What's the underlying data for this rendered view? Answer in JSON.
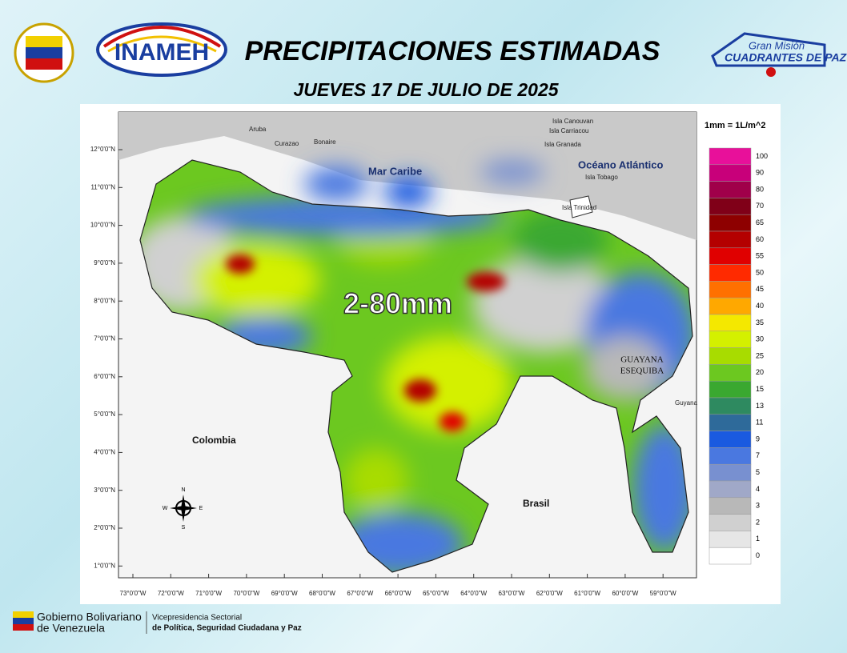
{
  "header": {
    "title": "PRECIPITACIONES ESTIMADAS",
    "subtitle": "JUEVES 17 DE JULIO DE 2025",
    "left_logo": "INAMEH",
    "right_logo_top": "Gran Misión",
    "right_logo_bottom": "CUADRANTES DE PAZ"
  },
  "map": {
    "latitude_labels": [
      "12°0'0\"N",
      "11°0'0\"N",
      "10°0'0\"N",
      "9°0'0\"N",
      "8°0'0\"N",
      "7°0'0\"N",
      "6°0'0\"N",
      "5°0'0\"N",
      "4°0'0\"N",
      "3°0'0\"N",
      "2°0'0\"N",
      "1°0'0\"N"
    ],
    "longitude_labels": [
      "73°0'0\"W",
      "72°0'0\"W",
      "71°0'0\"W",
      "70°0'0\"W",
      "69°0'0\"W",
      "68°0'0\"W",
      "67°0'0\"W",
      "66°0'0\"W",
      "65°0'0\"W",
      "64°0'0\"W",
      "63°0'0\"W",
      "62°0'0\"W",
      "61°0'0\"W",
      "60°0'0\"W",
      "59°0'0\"W"
    ],
    "places": [
      {
        "label": "Aruba"
      },
      {
        "label": "Curazao"
      },
      {
        "label": "Bonaire"
      },
      {
        "label": "Isla Canouvan"
      },
      {
        "label": "Isla Carriacou"
      },
      {
        "label": "Isla Granada"
      },
      {
        "label": "Isla Tobago"
      },
      {
        "label": "Isla Trinidad"
      },
      {
        "label": "Guyana"
      }
    ],
    "regions": [
      {
        "label": "Mar Caribe"
      },
      {
        "label": "Océano Atlántico"
      },
      {
        "label": "Colombia"
      },
      {
        "label": "Brasil"
      }
    ],
    "esequibo": [
      "GUAYANA",
      "ESEQUIBA"
    ],
    "range_label": "2-80mm",
    "compass": [
      "N",
      "S",
      "E",
      "W"
    ]
  },
  "legend": {
    "title": "1mm = 1L/m^2",
    "items": [
      {
        "value": 100,
        "color": "#e8109a"
      },
      {
        "value": 90,
        "color": "#c8007a"
      },
      {
        "value": 80,
        "color": "#a0004a"
      },
      {
        "value": 70,
        "color": "#800018"
      },
      {
        "value": 65,
        "color": "#8e0000"
      },
      {
        "value": 60,
        "color": "#b40000"
      },
      {
        "value": 55,
        "color": "#e00000"
      },
      {
        "value": 50,
        "color": "#ff2a00"
      },
      {
        "value": 45,
        "color": "#ff7000"
      },
      {
        "value": 40,
        "color": "#ffa800"
      },
      {
        "value": 35,
        "color": "#f4e800"
      },
      {
        "value": 30,
        "color": "#d4f000"
      },
      {
        "value": 25,
        "color": "#a8dc00"
      },
      {
        "value": 20,
        "color": "#6cc820"
      },
      {
        "value": 15,
        "color": "#3aa830"
      },
      {
        "value": 13,
        "color": "#2e8a60"
      },
      {
        "value": 11,
        "color": "#2e6a9a"
      },
      {
        "value": 9,
        "color": "#1a5ae0"
      },
      {
        "value": 7,
        "color": "#4a78e0"
      },
      {
        "value": 5,
        "color": "#7890d0"
      },
      {
        "value": 4,
        "color": "#a0a8c8"
      },
      {
        "value": 3,
        "color": "#b8b8b8"
      },
      {
        "value": 2,
        "color": "#d0d0d0"
      },
      {
        "value": 1,
        "color": "#e6e6e6"
      },
      {
        "value": 0,
        "color": "#ffffff"
      }
    ]
  },
  "footer": {
    "gov_line1": "Gobierno Bolivariano",
    "gov_line2": "de Venezuela",
    "vice_line1": "Vicepresidencia Sectorial",
    "vice_line2": "de Política, Seguridad Ciudadana y Paz"
  }
}
